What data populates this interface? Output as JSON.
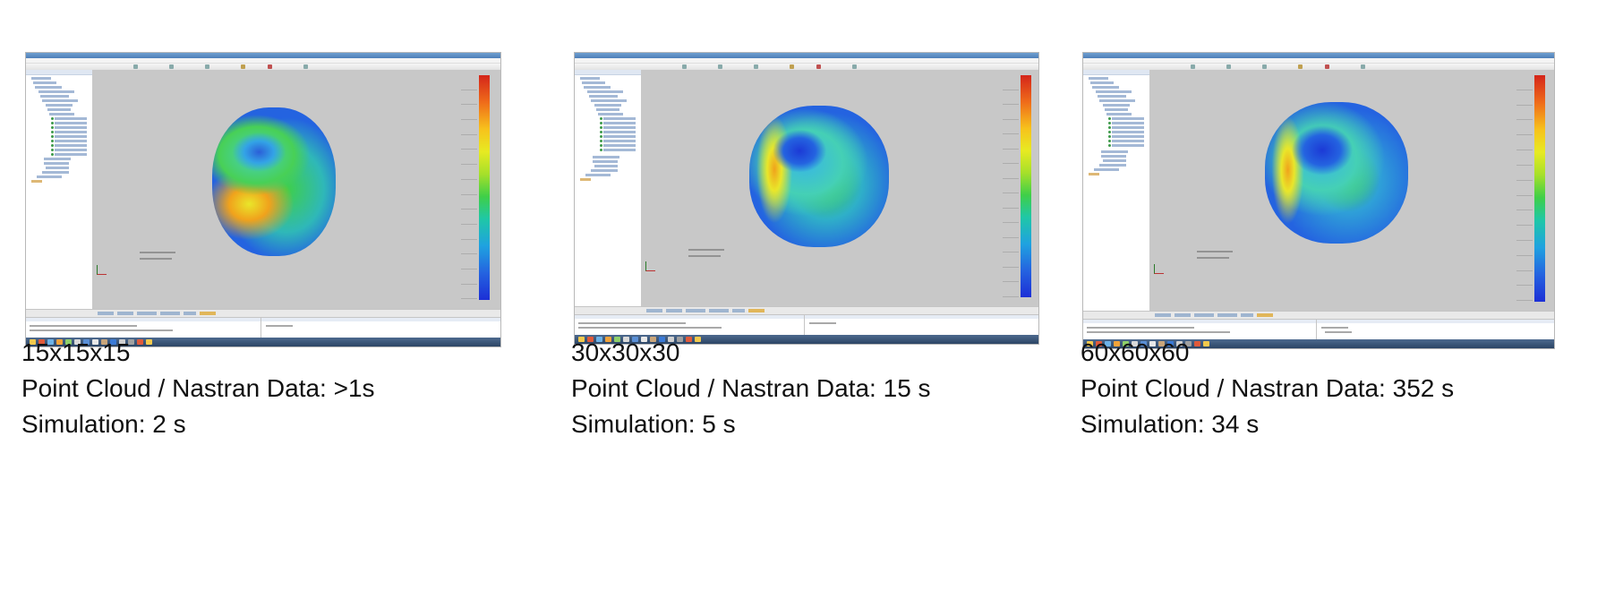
{
  "panels": [
    {
      "grid_label": "15x15x15",
      "point_cloud_text": "Point Cloud / Nastran Data: >1s",
      "simulation_text": "Simulation: 2 s",
      "screenshot_name": "screenshot-15x15x15"
    },
    {
      "grid_label": "30x30x30",
      "point_cloud_text": "Point Cloud / Nastran Data: 15 s",
      "simulation_text": "Simulation: 5 s",
      "screenshot_name": "screenshot-30x30x30"
    },
    {
      "grid_label": "60x60x60",
      "point_cloud_text": "Point Cloud / Nastran Data: 352 s",
      "simulation_text": "Simulation: 34 s",
      "screenshot_name": "screenshot-60x60x60"
    }
  ],
  "colors": {
    "viewport_background": "#c8c8c8",
    "legend_high": "#d4251a",
    "legend_low": "#1c2fd6",
    "text": "#111111"
  }
}
